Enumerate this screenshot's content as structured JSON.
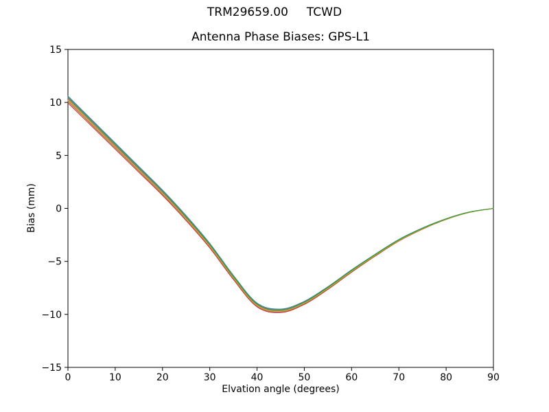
{
  "figure": {
    "suptitle": "TRM29659.00     TCWD",
    "axes_title": "Antenna Phase Biases: GPS-L1"
  },
  "axes": {
    "xlabel": "Elvation angle (degrees)",
    "ylabel": "Bias (mm)",
    "x_ticks": [
      0,
      10,
      20,
      30,
      40,
      50,
      60,
      70,
      80,
      90
    ],
    "y_ticks": [
      -15,
      -10,
      -5,
      0,
      5,
      10,
      15
    ],
    "frame_color": "#000000",
    "background": "#ffffff"
  },
  "chart_data": {
    "type": "line",
    "title": "Antenna Phase Biases: GPS-L1",
    "xlabel": "Elvation angle (degrees)",
    "ylabel": "Bias (mm)",
    "xlim": [
      0,
      90
    ],
    "ylim": [
      -15,
      15
    ],
    "grid": false,
    "legend_position": "none",
    "x": [
      0,
      5,
      10,
      15,
      20,
      25,
      30,
      35,
      40,
      45,
      50,
      55,
      60,
      65,
      70,
      75,
      80,
      85,
      90
    ],
    "series": [
      {
        "name": "line-1",
        "color": "#1f77b4",
        "values": [
          10.6,
          8.38,
          6.17,
          3.95,
          1.73,
          -0.68,
          -3.3,
          -6.32,
          -8.93,
          -9.5,
          -8.77,
          -7.38,
          -5.8,
          -4.32,
          -2.93,
          -1.85,
          -0.97,
          -0.33,
          0.0
        ]
      },
      {
        "name": "line-2",
        "color": "#ff7f0e",
        "values": [
          10.25,
          8.05,
          5.86,
          3.66,
          1.46,
          -0.94,
          -3.53,
          -6.53,
          -9.13,
          -9.68,
          -8.92,
          -7.52,
          -5.92,
          -4.41,
          -3.01,
          -1.91,
          -1.01,
          -0.35,
          0.0
        ]
      },
      {
        "name": "line-3",
        "color": "#d62728",
        "values": [
          9.95,
          7.77,
          5.59,
          3.41,
          1.23,
          -1.15,
          -3.73,
          -6.71,
          -9.29,
          -9.83,
          -9.06,
          -7.64,
          -6.02,
          -4.5,
          -3.08,
          -1.96,
          -1.04,
          -0.37,
          0.0
        ]
      },
      {
        "name": "line-4",
        "color": "#9467bd",
        "values": [
          10.35,
          8.15,
          5.94,
          3.74,
          1.54,
          -0.86,
          -3.47,
          -6.47,
          -9.07,
          -9.63,
          -8.88,
          -7.48,
          -5.88,
          -4.39,
          -2.99,
          -1.89,
          -0.99,
          -0.35,
          0.0
        ]
      },
      {
        "name": "line-5",
        "color": "#8c564b",
        "values": [
          10.1,
          7.91,
          5.72,
          3.53,
          1.34,
          -1.04,
          -3.63,
          -6.62,
          -9.21,
          -9.75,
          -8.99,
          -7.58,
          -5.97,
          -4.46,
          -3.04,
          -1.93,
          -1.02,
          -0.36,
          0.0
        ]
      },
      {
        "name": "line-6",
        "color": "#7f7f7f",
        "values": [
          10.52,
          8.31,
          6.1,
          3.88,
          1.67,
          -0.74,
          -3.35,
          -6.37,
          -8.98,
          -9.54,
          -8.8,
          -7.41,
          -5.83,
          -4.34,
          -2.95,
          -1.86,
          -0.98,
          -0.34,
          0.0
        ]
      },
      {
        "name": "line-7",
        "color": "#bcbd22",
        "values": [
          10.18,
          7.99,
          5.79,
          3.6,
          1.41,
          -0.99,
          -3.58,
          -6.57,
          -9.17,
          -9.71,
          -8.95,
          -7.55,
          -5.94,
          -4.43,
          -3.03,
          -1.92,
          -1.02,
          -0.36,
          0.0
        ]
      },
      {
        "name": "line-8",
        "color": "#2ca02c",
        "values": [
          10.45,
          8.24,
          6.03,
          3.82,
          1.62,
          -0.79,
          -3.4,
          -6.41,
          -9.02,
          -9.58,
          -8.83,
          -7.44,
          -5.85,
          -4.36,
          -2.97,
          -1.88,
          -0.99,
          -0.34,
          0.0
        ]
      }
    ]
  }
}
